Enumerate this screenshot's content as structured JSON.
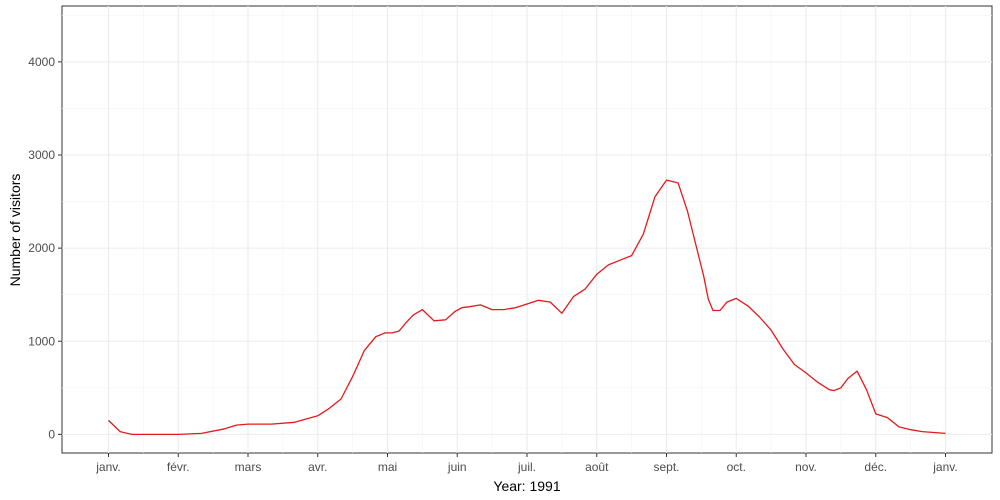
{
  "chart_data": {
    "type": "line",
    "xlabel": "Year: 1991",
    "ylabel": "Number of visitors",
    "x_ticks": [
      "janv.",
      "févr.",
      "mars",
      "avr.",
      "mai",
      "juin",
      "juil.",
      "août",
      "sept.",
      "oct.",
      "nov.",
      "déc.",
      "janv."
    ],
    "y_ticks": [
      0,
      1000,
      2000,
      3000,
      4000
    ],
    "ylim": [
      -200,
      4600
    ],
    "xlim": [
      -20,
      380
    ],
    "grid": true,
    "series": [
      {
        "color": "#e31a1c",
        "x": [
          0,
          5,
          10,
          20,
          30,
          40,
          50,
          55,
          60,
          70,
          80,
          90,
          95,
          100,
          105,
          110,
          115,
          119,
          122,
          125,
          128,
          131,
          135,
          140,
          145,
          149,
          152,
          155,
          160,
          165,
          170,
          175,
          180,
          185,
          190,
          195,
          200,
          205,
          210,
          215,
          220,
          225,
          230,
          235,
          240,
          245,
          249,
          253,
          256,
          258,
          260,
          263,
          266,
          270,
          275,
          280,
          285,
          290,
          295,
          300,
          305,
          310,
          312,
          315,
          318,
          322,
          326,
          330,
          335,
          340,
          345,
          350,
          355,
          360
        ],
        "y": [
          150,
          30,
          0,
          0,
          0,
          10,
          60,
          100,
          110,
          110,
          130,
          200,
          280,
          380,
          620,
          900,
          1050,
          1090,
          1090,
          1110,
          1200,
          1280,
          1340,
          1220,
          1230,
          1320,
          1360,
          1370,
          1390,
          1340,
          1340,
          1360,
          1400,
          1440,
          1420,
          1300,
          1480,
          1560,
          1720,
          1820,
          1870,
          1920,
          2150,
          2550,
          2730,
          2700,
          2400,
          2000,
          1700,
          1450,
          1330,
          1330,
          1420,
          1460,
          1380,
          1260,
          1120,
          920,
          750,
          660,
          560,
          480,
          470,
          500,
          600,
          680,
          480,
          220,
          180,
          80,
          50,
          30,
          20,
          10
        ]
      }
    ]
  }
}
